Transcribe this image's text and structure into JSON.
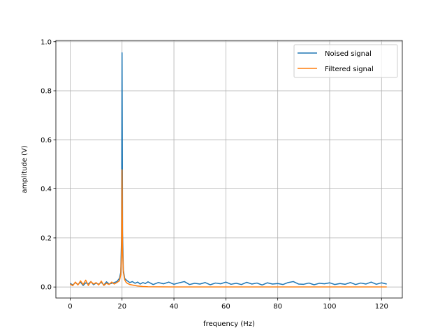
{
  "chart_data": {
    "type": "line",
    "xlabel": "frequency (Hz)",
    "ylabel": "amplitude (V)",
    "xlim": [
      -5.5,
      128
    ],
    "ylim": [
      -0.045,
      1.005
    ],
    "x_ticks": [
      0,
      20,
      40,
      60,
      80,
      100,
      120
    ],
    "x_tick_labels": [
      "0",
      "20",
      "40",
      "60",
      "80",
      "100",
      "120"
    ],
    "y_ticks": [
      0.0,
      0.2,
      0.4,
      0.6,
      0.8,
      1.0
    ],
    "y_tick_labels": [
      "0.0",
      "0.2",
      "0.4",
      "0.6",
      "0.8",
      "1.0"
    ],
    "grid": true,
    "legend_position": "top-right",
    "series": [
      {
        "name": "Noised signal",
        "color": "#1f77b4",
        "x": [
          0,
          1,
          2,
          3,
          4,
          5,
          6,
          7,
          8,
          9,
          10,
          11,
          12,
          13,
          14,
          15,
          16,
          17,
          18,
          19,
          19.5,
          19.8,
          20,
          20.2,
          20.5,
          21,
          22,
          23,
          24,
          25,
          26,
          27,
          28,
          29,
          30,
          32,
          34,
          36,
          38,
          40,
          42,
          44,
          46,
          48,
          50,
          52,
          54,
          56,
          58,
          60,
          62,
          64,
          66,
          68,
          70,
          72,
          74,
          76,
          78,
          80,
          82,
          84,
          86,
          88,
          90,
          92,
          94,
          96,
          98,
          100,
          102,
          104,
          106,
          108,
          110,
          112,
          114,
          116,
          118,
          120,
          122
        ],
        "values": [
          0.015,
          0.008,
          0.018,
          0.01,
          0.02,
          0.006,
          0.017,
          0.012,
          0.022,
          0.009,
          0.016,
          0.011,
          0.019,
          0.008,
          0.021,
          0.012,
          0.015,
          0.018,
          0.022,
          0.035,
          0.06,
          0.2,
          0.955,
          0.22,
          0.07,
          0.035,
          0.025,
          0.018,
          0.022,
          0.015,
          0.02,
          0.012,
          0.018,
          0.014,
          0.021,
          0.01,
          0.018,
          0.013,
          0.02,
          0.011,
          0.017,
          0.022,
          0.01,
          0.015,
          0.012,
          0.018,
          0.009,
          0.016,
          0.013,
          0.02,
          0.011,
          0.015,
          0.01,
          0.019,
          0.012,
          0.016,
          0.008,
          0.017,
          0.012,
          0.014,
          0.01,
          0.018,
          0.022,
          0.012,
          0.011,
          0.016,
          0.009,
          0.015,
          0.013,
          0.017,
          0.01,
          0.014,
          0.011,
          0.018,
          0.01,
          0.016,
          0.012,
          0.02,
          0.011,
          0.017,
          0.012
        ]
      },
      {
        "name": "Filtered signal",
        "color": "#ff7f0e",
        "x": [
          0,
          1,
          2,
          3,
          4,
          5,
          6,
          7,
          8,
          9,
          10,
          11,
          12,
          13,
          14,
          15,
          16,
          17,
          18,
          19,
          19.5,
          19.8,
          20,
          20.2,
          20.5,
          21,
          21.5,
          22,
          23,
          24,
          25,
          26,
          27,
          28,
          30,
          35,
          40,
          50,
          60,
          70,
          80,
          90,
          100,
          110,
          122
        ],
        "values": [
          0.012,
          0.005,
          0.02,
          0.008,
          0.025,
          0.01,
          0.028,
          0.006,
          0.022,
          0.012,
          0.018,
          0.008,
          0.024,
          0.006,
          0.015,
          0.01,
          0.02,
          0.012,
          0.018,
          0.025,
          0.05,
          0.15,
          0.478,
          0.15,
          0.06,
          0.03,
          0.02,
          0.015,
          0.01,
          0.008,
          0.006,
          0.004,
          0.003,
          0.002,
          0.001,
          0.0005,
          0.0003,
          0.0002,
          0.0001,
          0.0001,
          0.0001,
          0.0001,
          0.0001,
          0.0001,
          0.0001
        ]
      }
    ]
  }
}
